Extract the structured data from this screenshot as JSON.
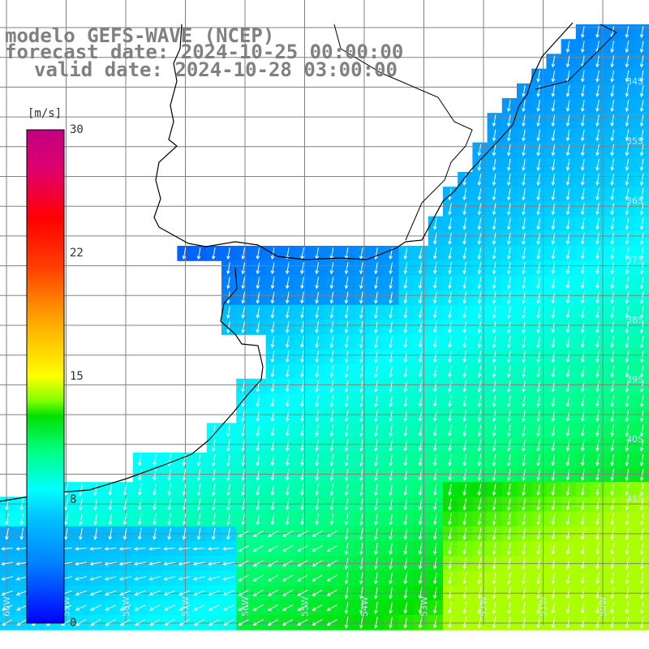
{
  "title": {
    "model": "modelo GEFS-WAVE (NCEP)",
    "forecast": "forecast date: 2024-10-25 00:00:00",
    "valid": "valid date: 2024-10-28 03:00:00"
  },
  "colorbar": {
    "units": "[m/s]",
    "ticks": [
      "30",
      "22",
      "15",
      "8",
      "0"
    ],
    "tick_values": [
      30,
      22,
      15,
      8,
      0
    ],
    "colors": [
      "#0000ff",
      "#0080ff",
      "#00c8ff",
      "#00ffff",
      "#00ff80",
      "#00e000",
      "#80ff00",
      "#ffff00",
      "#ffa000",
      "#ff4000",
      "#ff0000",
      "#e0006e",
      "#c00080"
    ]
  },
  "grid": {
    "lon_labels": [
      "60W",
      "59W",
      "58W",
      "57W",
      "56W",
      "55W",
      "54W",
      "53W",
      "52W",
      "51W",
      "50W",
      "49W"
    ],
    "lat_labels": [
      "34S",
      "35S",
      "36S",
      "37S",
      "38S",
      "39S",
      "40S",
      "41S"
    ]
  },
  "colors": {
    "land": "#ffffff",
    "grid_line": "#7f7f7f",
    "coast": "#000000",
    "arrow": "#ffffff",
    "title": "#808080"
  },
  "map_info": {
    "variable": "wind speed and direction",
    "arrow_direction": "mostly from north-northeast (pointing south-southwest), turning westward in the southwest corner"
  }
}
